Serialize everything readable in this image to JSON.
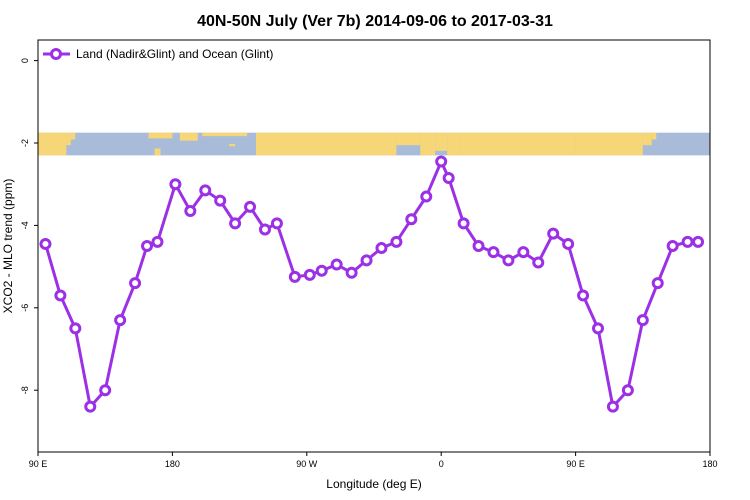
{
  "chart_data": {
    "type": "line",
    "title": "40N-50N July (Ver 7b)   2014-09-06 to 2017-03-31",
    "xlabel": "Longitude (deg E)",
    "ylabel": "XCO2 - MLO trend (ppm)",
    "xlim": [
      90,
      540
    ],
    "ylim": [
      -9.5,
      0.5
    ],
    "x_ticks": [
      {
        "value": 90,
        "label": "90 E"
      },
      {
        "value": 180,
        "label": "180"
      },
      {
        "value": 270,
        "label": "90 W"
      },
      {
        "value": 360,
        "label": "0"
      },
      {
        "value": 450,
        "label": "90 E"
      },
      {
        "value": 540,
        "label": "180"
      }
    ],
    "y_ticks": [
      {
        "value": 0,
        "label": "0"
      },
      {
        "value": -2,
        "label": "-2"
      },
      {
        "value": -4,
        "label": "-4"
      },
      {
        "value": -6,
        "label": "-6"
      },
      {
        "value": -8,
        "label": "-8"
      }
    ],
    "legend": {
      "position": "top-left"
    },
    "map_strip": {
      "y_top": -1.75,
      "y_bottom": -2.3,
      "ocean_color": "#a8bcd9",
      "land_color": "#f7d678"
    },
    "series": [
      {
        "name": "Land (Nadir&Glint) and Ocean (Glint)",
        "color": "#9b30e6",
        "x": [
          95,
          105,
          115,
          125,
          135,
          145,
          155,
          163,
          170,
          182,
          192,
          202,
          212,
          222,
          232,
          242,
          250,
          262,
          272,
          280,
          290,
          300,
          310,
          320,
          330,
          340,
          350,
          360,
          365,
          375,
          385,
          395,
          405,
          415,
          425,
          435,
          445,
          455,
          465,
          475,
          485,
          495,
          505,
          515,
          525,
          532
        ],
        "values": [
          -4.45,
          -5.7,
          -6.5,
          -8.4,
          -8.0,
          -6.3,
          -5.4,
          -4.5,
          -4.4,
          -3.0,
          -3.65,
          -3.15,
          -3.4,
          -3.95,
          -3.55,
          -4.1,
          -3.95,
          -5.25,
          -5.2,
          -5.1,
          -4.95,
          -5.15,
          -4.85,
          -4.55,
          -4.4,
          -3.85,
          -3.3,
          -2.45,
          -2.85,
          -3.95,
          -4.5,
          -4.65,
          -4.85,
          -4.65,
          -4.9,
          -4.2,
          -4.45,
          -5.7,
          -6.5,
          -8.4,
          -8.0,
          -6.3,
          -5.4,
          -4.5,
          -4.4,
          -4.4
        ]
      }
    ]
  }
}
